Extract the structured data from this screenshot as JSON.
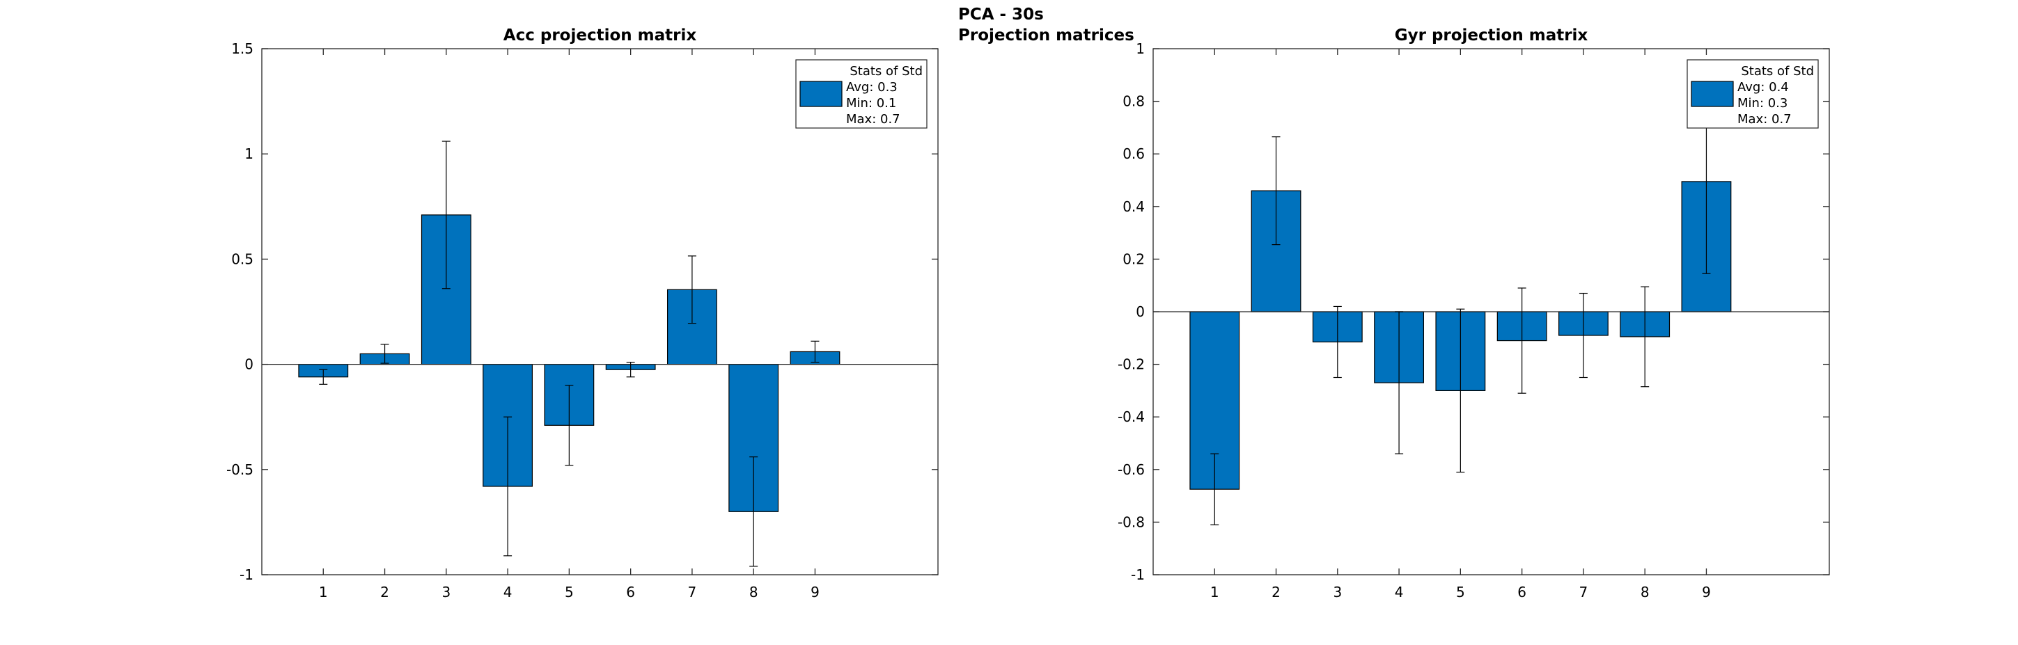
{
  "figure": {
    "title_lines": [
      "PCA - 30s",
      "Projection matrices"
    ]
  },
  "colors": {
    "bar_fill": "#0072BD",
    "bar_edge": "#000000",
    "error_bar": "#000000",
    "axis": "#262626",
    "background": "#ffffff"
  },
  "chart_data": [
    {
      "type": "bar",
      "title": "Acc projection matrix",
      "xlabel": "",
      "ylabel": "",
      "categories": [
        "1",
        "2",
        "3",
        "4",
        "5",
        "6",
        "7",
        "8",
        "9"
      ],
      "values": [
        -0.06,
        0.05,
        0.71,
        -0.58,
        -0.29,
        -0.025,
        0.355,
        -0.7,
        0.06
      ],
      "error": [
        0.035,
        0.045,
        0.35,
        0.33,
        0.19,
        0.035,
        0.16,
        0.26,
        0.05
      ],
      "ylim": [
        -1,
        1.5
      ],
      "yticks": [
        -1,
        -0.5,
        0,
        0.5,
        1,
        1.5
      ],
      "ytick_labels": [
        "-1",
        "-0.5",
        "0",
        "0.5",
        "1",
        "1.5"
      ],
      "grid": false,
      "legend": {
        "placement": "top-right",
        "lines": [
          "Stats of Std",
          "Avg: 0.3",
          "Min: 0.1",
          "Max: 0.7"
        ]
      }
    },
    {
      "type": "bar",
      "title": "Gyr projection matrix",
      "xlabel": "",
      "ylabel": "",
      "categories": [
        "1",
        "2",
        "3",
        "4",
        "5",
        "6",
        "7",
        "8",
        "9"
      ],
      "values": [
        -0.675,
        0.46,
        -0.115,
        -0.27,
        -0.3,
        -0.11,
        -0.09,
        -0.095,
        0.495
      ],
      "error": [
        0.135,
        0.205,
        0.135,
        0.27,
        0.31,
        0.2,
        0.16,
        0.19,
        0.35
      ],
      "ylim": [
        -1,
        1
      ],
      "yticks": [
        -1,
        -0.8,
        -0.6,
        -0.4,
        -0.2,
        0,
        0.2,
        0.4,
        0.6,
        0.8,
        1
      ],
      "ytick_labels": [
        "-1",
        "-0.8",
        "-0.6",
        "-0.4",
        "-0.2",
        "0",
        "0.2",
        "0.4",
        "0.6",
        "0.8",
        "1"
      ],
      "grid": false,
      "legend": {
        "placement": "top-right",
        "lines": [
          "Stats of Std",
          "Avg: 0.4",
          "Min: 0.3",
          "Max: 0.7"
        ]
      }
    }
  ]
}
